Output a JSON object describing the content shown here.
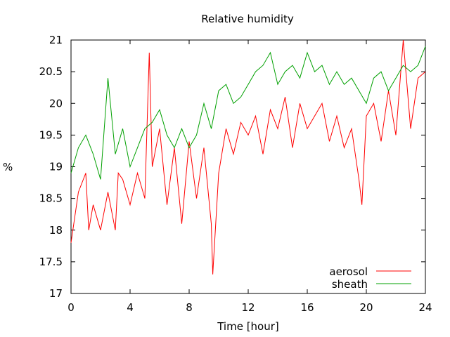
{
  "chart_data": {
    "type": "line",
    "title": "Relative humidity",
    "xlabel": "Time [hour]",
    "ylabel": "%",
    "xlim": [
      0,
      24
    ],
    "ylim": [
      17,
      21
    ],
    "xticks": [
      "0",
      "4",
      "8",
      "12",
      "16",
      "20",
      "24"
    ],
    "yticks": [
      "17",
      "17.5",
      "18",
      "18.5",
      "19",
      "19.5",
      "20",
      "20.5",
      "21"
    ],
    "grid": false,
    "legend_position": "bottom-right",
    "series": [
      {
        "name": "aerosol",
        "color": "#ff0000",
        "x": [
          0,
          0.5,
          1,
          1.2,
          1.5,
          2,
          2.5,
          3,
          3.2,
          3.5,
          4,
          4.5,
          5,
          5.3,
          5.5,
          6,
          6.5,
          7,
          7.5,
          8,
          8.5,
          9,
          9.5,
          9.6,
          10,
          10.5,
          11,
          11.5,
          12,
          12.5,
          13,
          13.5,
          14,
          14.5,
          15,
          15.5,
          16,
          16.5,
          17,
          17.5,
          18,
          18.5,
          19,
          19.5,
          19.7,
          20,
          20.5,
          21,
          21.5,
          22,
          22.5,
          23,
          23.5,
          24
        ],
        "values": [
          17.8,
          18.6,
          18.9,
          18.0,
          18.4,
          18.0,
          18.6,
          18.0,
          18.9,
          18.8,
          18.4,
          18.9,
          18.5,
          20.8,
          19.0,
          19.6,
          18.4,
          19.3,
          18.1,
          19.4,
          18.5,
          19.3,
          18.1,
          17.3,
          18.9,
          19.6,
          19.2,
          19.7,
          19.5,
          19.8,
          19.2,
          19.9,
          19.6,
          20.1,
          19.3,
          20.0,
          19.6,
          19.8,
          20.0,
          19.4,
          19.8,
          19.3,
          19.6,
          18.8,
          18.4,
          19.8,
          20.0,
          19.4,
          20.2,
          19.5,
          21.0,
          19.6,
          20.4,
          20.5
        ]
      },
      {
        "name": "sheath",
        "color": "#00a000",
        "x": [
          0,
          0.5,
          1,
          1.5,
          2,
          2.5,
          3,
          3.5,
          4,
          4.5,
          5,
          5.5,
          6,
          6.5,
          7,
          7.5,
          8,
          8.5,
          9,
          9.5,
          10,
          10.5,
          11,
          11.5,
          12,
          12.5,
          13,
          13.5,
          14,
          14.5,
          15,
          15.5,
          16,
          16.5,
          17,
          17.5,
          18,
          18.5,
          19,
          19.5,
          20,
          20.5,
          21,
          21.5,
          22,
          22.5,
          23,
          23.5,
          24
        ],
        "values": [
          18.9,
          19.3,
          19.5,
          19.2,
          18.8,
          20.4,
          19.2,
          19.6,
          19.0,
          19.3,
          19.6,
          19.7,
          19.9,
          19.5,
          19.3,
          19.6,
          19.3,
          19.5,
          20.0,
          19.6,
          20.2,
          20.3,
          20.0,
          20.1,
          20.3,
          20.5,
          20.6,
          20.8,
          20.3,
          20.5,
          20.6,
          20.4,
          20.8,
          20.5,
          20.6,
          20.3,
          20.5,
          20.3,
          20.4,
          20.2,
          20.0,
          20.4,
          20.5,
          20.2,
          20.4,
          20.6,
          20.5,
          20.6,
          20.9
        ]
      }
    ]
  }
}
